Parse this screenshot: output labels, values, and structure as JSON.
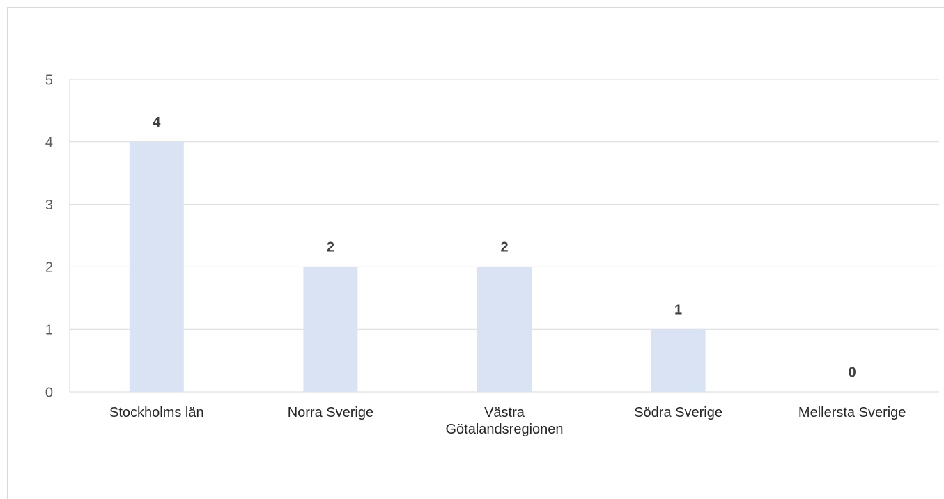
{
  "chart_data": {
    "type": "bar",
    "categories": [
      "Stockholms län",
      "Norra Sverige",
      "Västra Götalandsregionen",
      "Södra Sverige",
      "Mellersta Sverige"
    ],
    "values": [
      4,
      2,
      2,
      1,
      0
    ],
    "color": "#dae3f3",
    "ylim": [
      0,
      5
    ],
    "yticks": [
      0,
      1,
      2,
      3,
      4,
      5
    ],
    "grid": true
  }
}
